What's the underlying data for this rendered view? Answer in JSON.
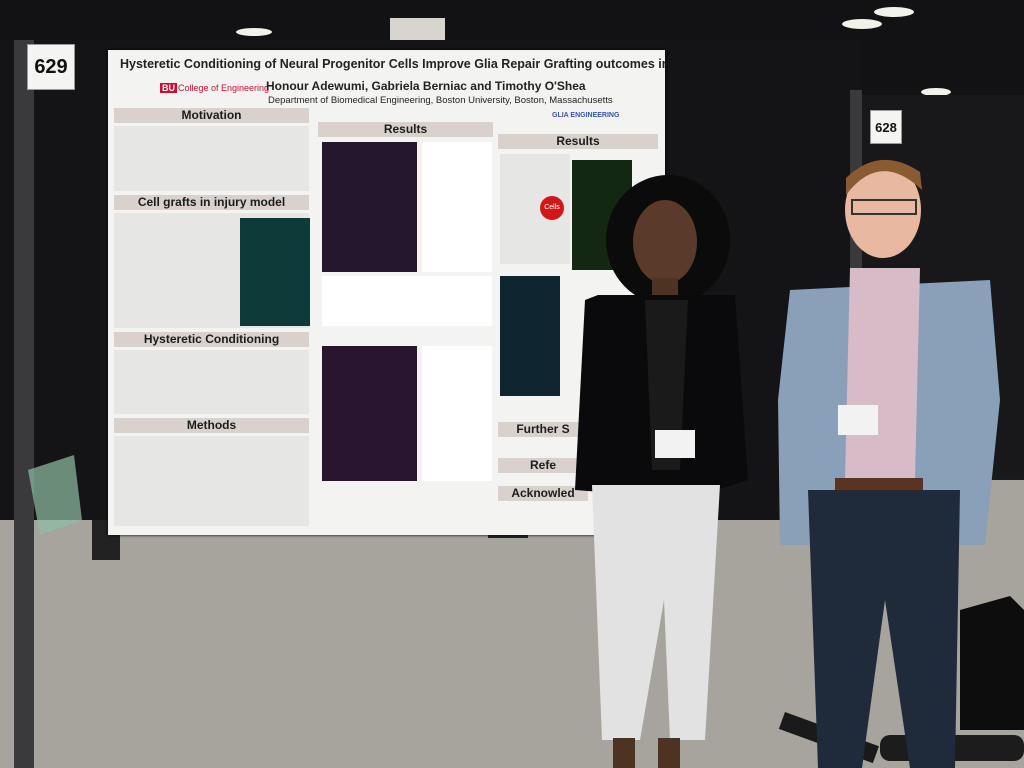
{
  "signs": [
    "629",
    "628"
  ],
  "poster": {
    "title": "Hysteretic Conditioning of Neural Progenitor Cells Improve Glia Repair Grafting outcomes in CNS injuries",
    "authors": "Honour Adewumi, Gabriela Berniac and Timothy O'Shea",
    "department": "Department of Biomedical Engineering, Boston University, Boston, Massachusetts",
    "logo": "BU",
    "school": "College of Engineering",
    "lab": "GLIA ENGINEERING",
    "sections": [
      "Motivation",
      "Cell grafts in injury model",
      "Hysteretic Conditioning",
      "Methods",
      "Results",
      "Results",
      "Further S",
      "Refe",
      "Acknowled"
    ],
    "badge": "Cells"
  }
}
